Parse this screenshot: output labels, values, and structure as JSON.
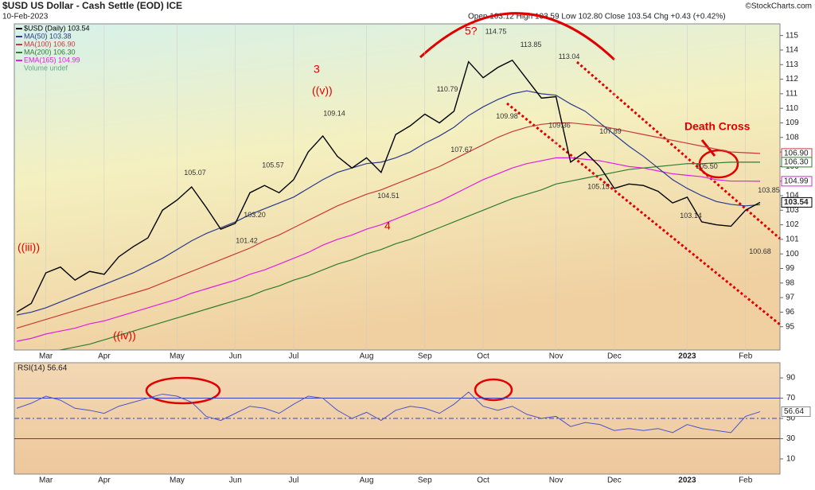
{
  "chart_data": [
    {
      "type": "line",
      "title": "$USD US Dollar - Cash Settle (EOD) ICE",
      "subtitle": "10-Feb-2023",
      "quote": "Open 103.12 High 103.59 Low 102.80 Close 103.54 Chg +0.43 (+0.42%)",
      "credit": "©StockCharts.com",
      "categories": [
        null,
        null,
        "Mar",
        null,
        null,
        null,
        "Apr",
        null,
        null,
        null,
        null,
        "May",
        null,
        null,
        null,
        "Jun",
        null,
        null,
        null,
        "Jul",
        null,
        null,
        null,
        null,
        "Aug",
        null,
        null,
        null,
        "Sep",
        null,
        null,
        null,
        "Oct",
        null,
        null,
        null,
        null,
        "Nov",
        null,
        null,
        null,
        "Dec",
        null,
        null,
        null,
        null,
        "2023",
        null,
        null,
        null,
        "Feb",
        null
      ],
      "series": [
        {
          "name": "$USD (Daily) 103.54",
          "color": "#000000",
          "end_label": "103.54",
          "values": [
            96.0,
            96.6,
            98.7,
            99.1,
            98.2,
            98.8,
            98.6,
            99.8,
            100.5,
            101.1,
            103.0,
            103.7,
            104.6,
            103.2,
            101.7,
            102.1,
            104.2,
            104.7,
            104.2,
            105.1,
            107.0,
            108.1,
            106.7,
            105.9,
            106.6,
            105.6,
            108.2,
            108.8,
            109.6,
            109.0,
            109.8,
            113.2,
            112.1,
            112.8,
            113.3,
            112.0,
            110.7,
            110.8,
            106.3,
            107.0,
            106.0,
            104.5,
            104.8,
            104.7,
            104.3,
            103.5,
            103.9,
            102.2,
            102.0,
            101.9,
            103.0,
            103.54
          ]
        },
        {
          "name": "MA(50) 103.38",
          "color": "#2b3a8c",
          "values": [
            95.8,
            96.0,
            96.3,
            96.7,
            97.1,
            97.5,
            97.9,
            98.3,
            98.7,
            99.2,
            99.7,
            100.3,
            100.9,
            101.4,
            101.8,
            102.2,
            102.7,
            103.1,
            103.5,
            103.9,
            104.5,
            105.1,
            105.6,
            105.9,
            106.2,
            106.3,
            106.6,
            107.0,
            107.6,
            108.1,
            108.7,
            109.5,
            110.1,
            110.6,
            111.0,
            111.2,
            111.0,
            110.9,
            110.3,
            109.8,
            109.0,
            108.2,
            107.4,
            106.7,
            105.9,
            105.1,
            104.5,
            104.0,
            103.6,
            103.4,
            103.3,
            103.38
          ]
        },
        {
          "name": "MA(100) 106.90",
          "color": "#c83a3a",
          "end_label": "106.90",
          "values": [
            94.9,
            95.2,
            95.5,
            95.8,
            96.1,
            96.4,
            96.7,
            97.0,
            97.3,
            97.6,
            98.0,
            98.4,
            98.8,
            99.2,
            99.6,
            100.0,
            100.4,
            100.9,
            101.3,
            101.8,
            102.3,
            102.8,
            103.3,
            103.7,
            104.1,
            104.4,
            104.8,
            105.2,
            105.6,
            106.0,
            106.5,
            107.0,
            107.5,
            108.0,
            108.4,
            108.7,
            108.9,
            109.0,
            109.0,
            108.9,
            108.8,
            108.6,
            108.4,
            108.2,
            108.0,
            107.8,
            107.6,
            107.4,
            107.2,
            107.0,
            106.95,
            106.9
          ]
        },
        {
          "name": "MA(200) 106.30",
          "color": "#2e7d32",
          "end_label": "106.30",
          "values": [
            92.8,
            93.0,
            93.2,
            93.4,
            93.6,
            93.8,
            94.1,
            94.4,
            94.7,
            95.0,
            95.3,
            95.6,
            95.9,
            96.2,
            96.5,
            96.8,
            97.1,
            97.5,
            97.8,
            98.2,
            98.5,
            98.9,
            99.3,
            99.6,
            100.0,
            100.3,
            100.7,
            101.0,
            101.4,
            101.8,
            102.2,
            102.6,
            103.0,
            103.4,
            103.8,
            104.1,
            104.4,
            104.8,
            105.0,
            105.2,
            105.4,
            105.6,
            105.8,
            105.9,
            106.0,
            106.1,
            106.2,
            106.2,
            106.25,
            106.3,
            106.3,
            106.3
          ]
        },
        {
          "name": "EMA(165) 104.99",
          "color": "#e020e0",
          "end_label": "104.99",
          "values": [
            94.0,
            94.2,
            94.5,
            94.7,
            94.9,
            95.2,
            95.4,
            95.7,
            96.0,
            96.3,
            96.6,
            96.9,
            97.3,
            97.6,
            97.9,
            98.2,
            98.6,
            98.9,
            99.3,
            99.7,
            100.1,
            100.6,
            101.0,
            101.3,
            101.7,
            102.0,
            102.4,
            102.8,
            103.2,
            103.6,
            104.1,
            104.6,
            105.1,
            105.5,
            105.9,
            106.2,
            106.4,
            106.6,
            106.6,
            106.5,
            106.4,
            106.2,
            106.0,
            105.9,
            105.7,
            105.5,
            105.4,
            105.3,
            105.1,
            105.0,
            105.0,
            104.99
          ]
        }
      ],
      "legend_extra": "Volume undef",
      "ylim": [
        93.4,
        115.8
      ],
      "yticks": [
        95,
        96,
        97,
        98,
        99,
        100,
        101,
        102,
        103,
        104,
        105,
        106,
        107,
        108,
        109,
        110,
        111,
        112,
        113,
        114,
        115
      ],
      "annotations": [
        "((iii))",
        "((iv))",
        "3",
        "((v))",
        "4",
        "5?",
        "Death Cross"
      ],
      "peaks": [
        105.07,
        105.57,
        101.42,
        {
          "value": 103.2,
          "label": "103.20"
        },
        109.14,
        104.51,
        110.79,
        107.67,
        114.75,
        109.98,
        113.85,
        109.36,
        113.04,
        107.89,
        105.15,
        {
          "value": 105.5,
          "label": "105.50"
        },
        103.14,
        103.85,
        100.68
      ]
    },
    {
      "type": "line",
      "title": "RSI(14) 56.64",
      "color": "#4a55c8",
      "end_label": "56.64",
      "values": [
        60,
        65,
        72,
        68,
        60,
        58,
        55,
        62,
        66,
        70,
        74,
        72,
        66,
        52,
        48,
        55,
        62,
        60,
        55,
        64,
        72,
        70,
        58,
        50,
        56,
        48,
        58,
        62,
        60,
        55,
        64,
        76,
        62,
        58,
        62,
        54,
        50,
        52,
        42,
        46,
        44,
        38,
        40,
        38,
        40,
        36,
        44,
        40,
        38,
        36,
        52,
        56.64
      ],
      "levels": [
        70,
        50,
        30
      ],
      "ylim": [
        -5,
        105
      ],
      "yticks": [
        10,
        30,
        50,
        70,
        90
      ]
    }
  ]
}
